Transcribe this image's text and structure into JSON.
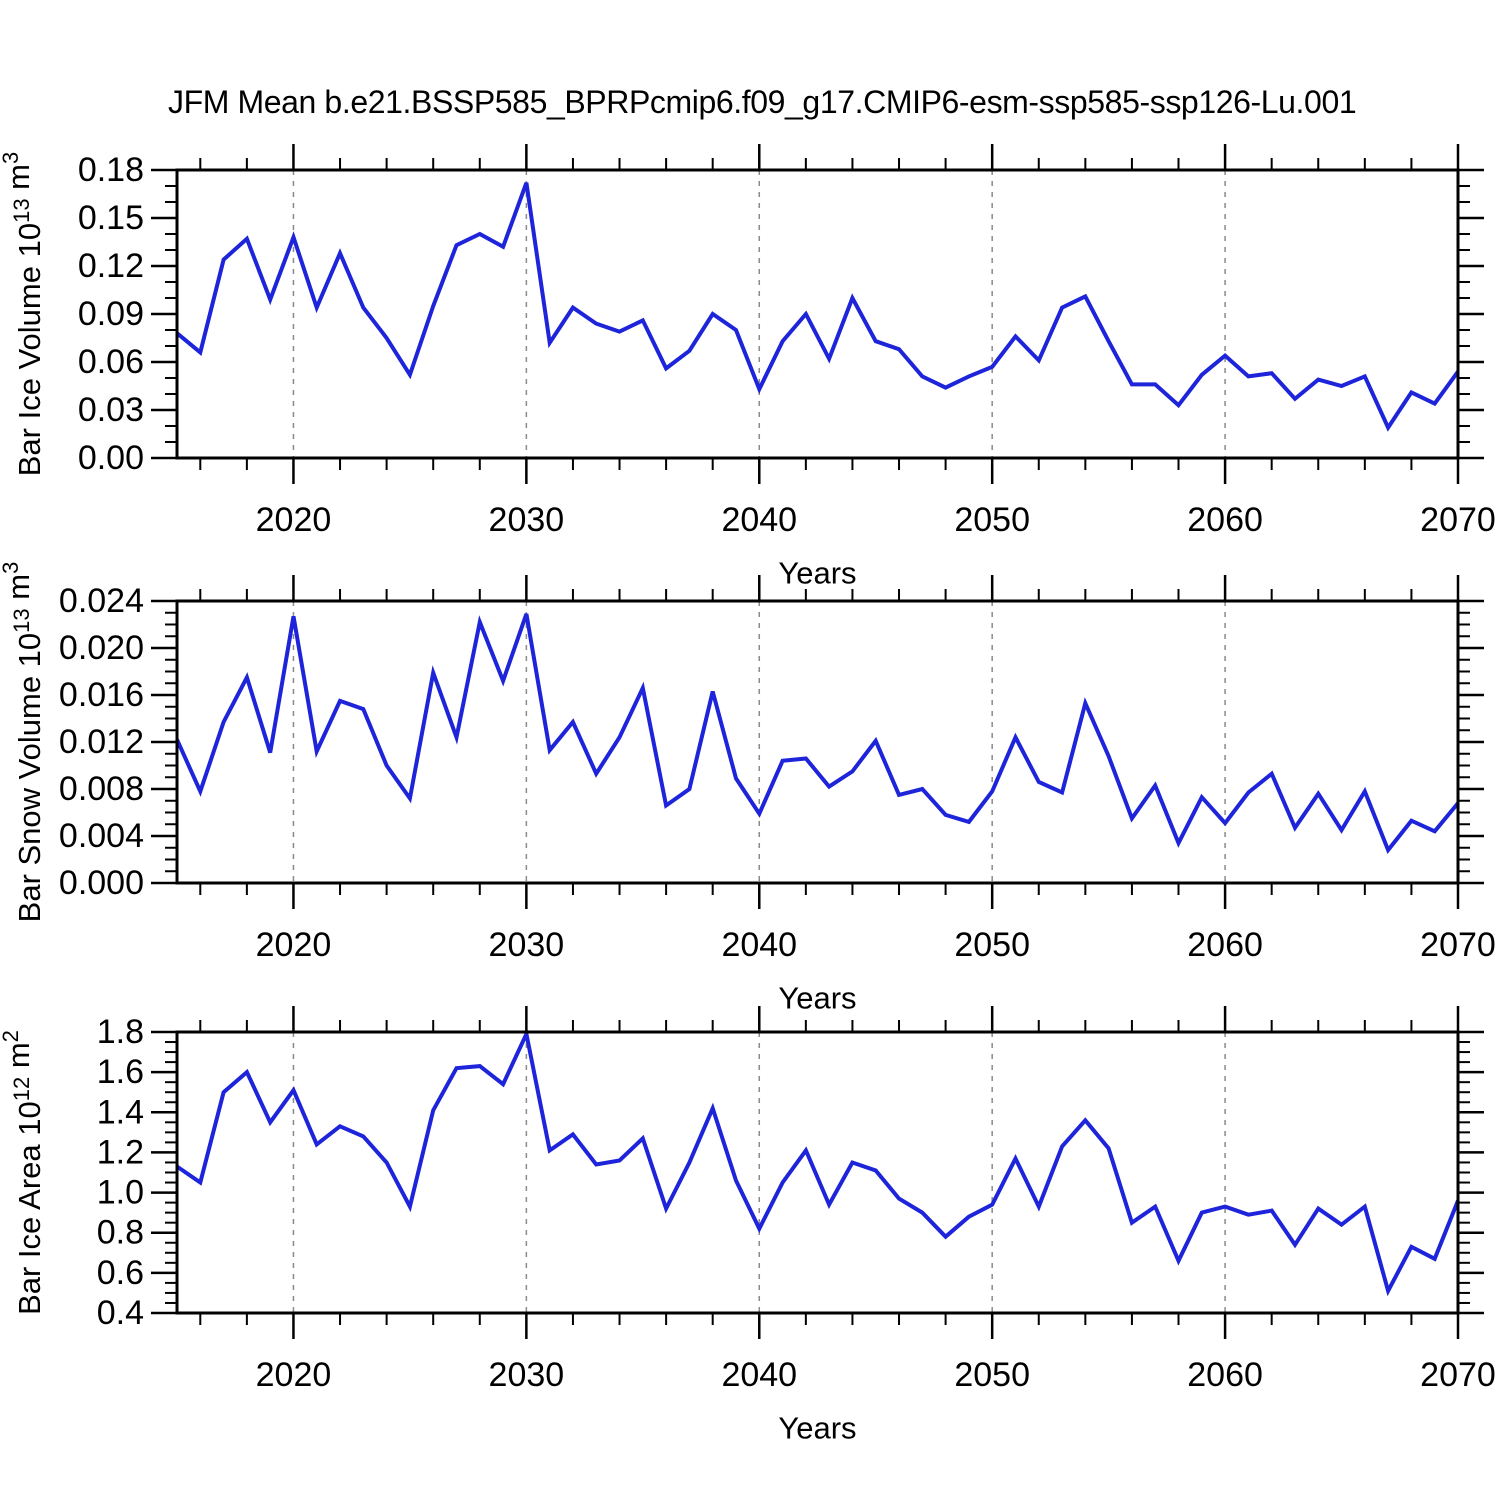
{
  "title": "JFM Mean b.e21.BSSP585_BPRPcmip6.f09_g17.CMIP6-esm-ssp585-ssp126-Lu.001",
  "xlabel": "Years",
  "colors": {
    "line": "#1d24da",
    "grid": "#8a8a8a",
    "frame": "#000000",
    "background": "#ffffff"
  },
  "x_axis": {
    "start": 2015,
    "end": 2070,
    "major_tick_labels": [
      "2020",
      "2030",
      "2040",
      "2050",
      "2060",
      "2070"
    ],
    "major_ticks": [
      2020,
      2030,
      2040,
      2050,
      2060,
      2070
    ],
    "minor_tick_step_years": 2,
    "dashed_gridline_years": [
      2020,
      2030,
      2040,
      2050,
      2060
    ]
  },
  "years": [
    2015,
    2016,
    2017,
    2018,
    2019,
    2020,
    2021,
    2022,
    2023,
    2024,
    2025,
    2026,
    2027,
    2028,
    2029,
    2030,
    2031,
    2032,
    2033,
    2034,
    2035,
    2036,
    2037,
    2038,
    2039,
    2040,
    2041,
    2042,
    2043,
    2044,
    2045,
    2046,
    2047,
    2048,
    2049,
    2050,
    2051,
    2052,
    2053,
    2054,
    2055,
    2056,
    2057,
    2058,
    2059,
    2060,
    2061,
    2062,
    2063,
    2064,
    2065,
    2066,
    2067,
    2068,
    2069,
    2070
  ],
  "chart_data": [
    {
      "type": "line",
      "id": "bar-ice-volume",
      "ylabel_text": "Bar Ice Volume 10^13 m^3",
      "ylabel_segments": [
        {
          "text": "Bar Ice Volume 10",
          "sup": false
        },
        {
          "text": "13",
          "sup": true
        },
        {
          "text": " m",
          "sup": false
        },
        {
          "text": "3",
          "sup": true
        }
      ],
      "xlabel": "Years",
      "ylim": [
        0.0,
        0.18
      ],
      "ytick_labels": [
        "0.00",
        "0.03",
        "0.06",
        "0.09",
        "0.12",
        "0.15",
        "0.18"
      ],
      "y_minors_between_majors": 2,
      "grid": "vertical-dashed-decades",
      "legend": "none",
      "values": [
        0.078,
        0.066,
        0.124,
        0.137,
        0.099,
        0.138,
        0.094,
        0.128,
        0.094,
        0.075,
        0.052,
        0.095,
        0.133,
        0.14,
        0.132,
        0.172,
        0.072,
        0.094,
        0.084,
        0.079,
        0.086,
        0.056,
        0.067,
        0.09,
        0.08,
        0.043,
        0.073,
        0.09,
        0.062,
        0.1,
        0.073,
        0.068,
        0.051,
        0.044,
        0.051,
        0.057,
        0.076,
        0.061,
        0.094,
        0.101,
        0.073,
        0.046,
        0.046,
        0.033,
        0.052,
        0.064,
        0.051,
        0.053,
        0.037,
        0.049,
        0.045,
        0.051,
        0.019,
        0.041,
        0.034,
        0.054
      ]
    },
    {
      "type": "line",
      "id": "bar-snow-volume",
      "ylabel_text": "Bar Snow Volume 10^13 m^3",
      "ylabel_segments": [
        {
          "text": "Bar Snow Volume 10",
          "sup": false
        },
        {
          "text": "13",
          "sup": true
        },
        {
          "text": " m",
          "sup": false
        },
        {
          "text": "3",
          "sup": true
        }
      ],
      "xlabel": "Years",
      "ylim": [
        0.0,
        0.024
      ],
      "ytick_labels": [
        "0.000",
        "0.004",
        "0.008",
        "0.012",
        "0.016",
        "0.020",
        "0.024"
      ],
      "y_minors_between_majors": 3,
      "grid": "vertical-dashed-decades",
      "legend": "none",
      "values": [
        0.0122,
        0.0078,
        0.0137,
        0.0175,
        0.0111,
        0.0227,
        0.0112,
        0.0155,
        0.0148,
        0.01,
        0.0072,
        0.0179,
        0.0124,
        0.0222,
        0.0172,
        0.0229,
        0.0113,
        0.0137,
        0.0093,
        0.0124,
        0.0166,
        0.0066,
        0.008,
        0.0163,
        0.0089,
        0.0059,
        0.0104,
        0.0106,
        0.0082,
        0.0095,
        0.0121,
        0.0075,
        0.008,
        0.0058,
        0.0052,
        0.0078,
        0.0124,
        0.0086,
        0.0077,
        0.0153,
        0.0108,
        0.0055,
        0.0083,
        0.0034,
        0.0073,
        0.0051,
        0.0077,
        0.0093,
        0.0047,
        0.0076,
        0.0045,
        0.0078,
        0.0028,
        0.0053,
        0.0044,
        0.0068
      ]
    },
    {
      "type": "line",
      "id": "bar-ice-area",
      "ylabel_text": "Bar Ice Area 10^12 m^2",
      "ylabel_segments": [
        {
          "text": "Bar Ice Area 10",
          "sup": false
        },
        {
          "text": "12",
          "sup": true
        },
        {
          "text": " m",
          "sup": false
        },
        {
          "text": "2",
          "sup": true
        }
      ],
      "xlabel": "Years",
      "ylim": [
        0.4,
        1.8
      ],
      "ytick_labels": [
        "0.4",
        "0.6",
        "0.8",
        "1.0",
        "1.2",
        "1.4",
        "1.6",
        "1.8"
      ],
      "y_minors_between_majors": 3,
      "grid": "vertical-dashed-decades",
      "legend": "none",
      "values": [
        1.13,
        1.05,
        1.5,
        1.6,
        1.35,
        1.51,
        1.24,
        1.33,
        1.28,
        1.15,
        0.93,
        1.41,
        1.62,
        1.63,
        1.54,
        1.79,
        1.21,
        1.29,
        1.14,
        1.16,
        1.27,
        0.92,
        1.15,
        1.42,
        1.06,
        0.82,
        1.05,
        1.21,
        0.94,
        1.15,
        1.11,
        0.97,
        0.9,
        0.78,
        0.88,
        0.94,
        1.17,
        0.93,
        1.23,
        1.36,
        1.22,
        0.85,
        0.93,
        0.66,
        0.9,
        0.93,
        0.89,
        0.91,
        0.74,
        0.92,
        0.84,
        0.93,
        0.51,
        0.73,
        0.67,
        0.96
      ]
    }
  ]
}
